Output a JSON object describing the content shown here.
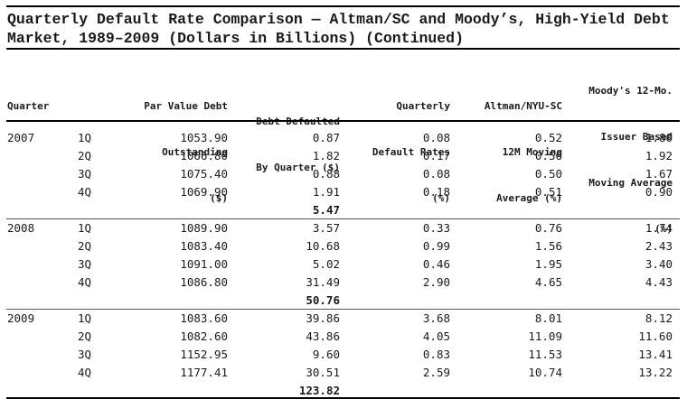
{
  "title": "Quarterly Default Rate Comparison — Altman/SC and Moody’s, High-Yield Debt Market, 1989–2009 (Dollars in Billions) (Continued)",
  "headers": {
    "quarter": "Quarter",
    "par_value": [
      "Par Value Debt",
      "Outstanding",
      "($)"
    ],
    "defaulted": [
      "Debt Defaulted",
      "By Quarter ($)"
    ],
    "default_rates": [
      "Quarterly",
      "Default Rates",
      "(%)"
    ],
    "altman": [
      "Altman/NYU-SC",
      "12M Moving",
      "Average (%)"
    ],
    "moodys": [
      "Moody's 12-Mo.",
      "Issuer Based",
      "Moving Average",
      "(%)"
    ]
  },
  "years": [
    {
      "year": "2007",
      "total": "5.47",
      "rows": [
        {
          "q": "1Q",
          "par": "1053.90",
          "def": "0.87",
          "rate": "0.08",
          "altman": "0.52",
          "moodys": "1.80"
        },
        {
          "q": "2Q",
          "par": "1066.80",
          "def": "1.82",
          "rate": "0.17",
          "altman": "0.56",
          "moodys": "1.92"
        },
        {
          "q": "3Q",
          "par": "1075.40",
          "def": "0.88",
          "rate": "0.08",
          "altman": "0.50",
          "moodys": "1.67"
        },
        {
          "q": "4Q",
          "par": "1069.90",
          "def": "1.91",
          "rate": "0.18",
          "altman": "0.51",
          "moodys": "0.90"
        }
      ]
    },
    {
      "year": "2008",
      "total": "50.76",
      "rows": [
        {
          "q": "1Q",
          "par": "1089.90",
          "def": "3.57",
          "rate": "0.33",
          "altman": "0.76",
          "moodys": "1.74"
        },
        {
          "q": "2Q",
          "par": "1083.40",
          "def": "10.68",
          "rate": "0.99",
          "altman": "1.56",
          "moodys": "2.43"
        },
        {
          "q": "3Q",
          "par": "1091.00",
          "def": "5.02",
          "rate": "0.46",
          "altman": "1.95",
          "moodys": "3.40"
        },
        {
          "q": "4Q",
          "par": "1086.80",
          "def": "31.49",
          "rate": "2.90",
          "altman": "4.65",
          "moodys": "4.43"
        }
      ]
    },
    {
      "year": "2009",
      "total": "123.82",
      "rows": [
        {
          "q": "1Q",
          "par": "1083.60",
          "def": "39.86",
          "rate": "3.68",
          "altman": "8.01",
          "moodys": "8.12"
        },
        {
          "q": "2Q",
          "par": "1082.60",
          "def": "43.86",
          "rate": "4.05",
          "altman": "11.09",
          "moodys": "11.60"
        },
        {
          "q": "3Q",
          "par": "1152.95",
          "def": "9.60",
          "rate": "0.83",
          "altman": "11.53",
          "moodys": "13.41"
        },
        {
          "q": "4Q",
          "par": "1177.41",
          "def": "30.51",
          "rate": "2.59",
          "altman": "10.74",
          "moodys": "13.22"
        }
      ]
    }
  ]
}
